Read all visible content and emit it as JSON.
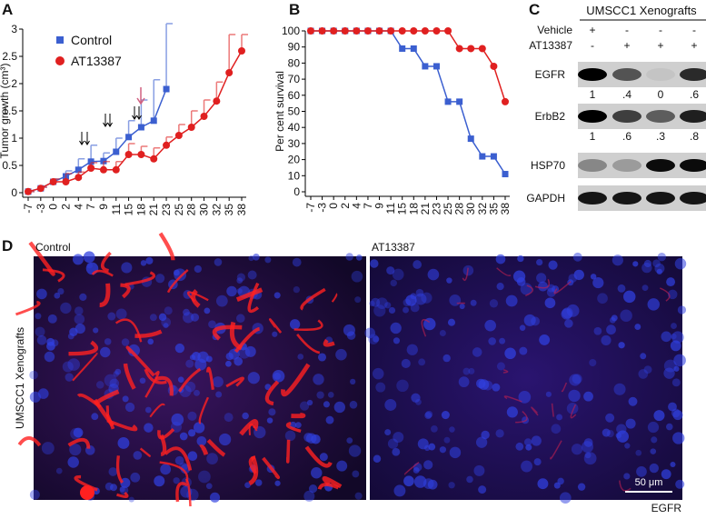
{
  "chart_data": [
    {
      "type": "line",
      "panel": "A",
      "ylabel": "Tumor growth (cm³)",
      "categories": [
        "-7",
        "-3",
        "0",
        "2",
        "4",
        "7",
        "9",
        "11",
        "15",
        "18",
        "21",
        "23",
        "25",
        "28",
        "30",
        "32",
        "35",
        "38"
      ],
      "ylim": [
        0,
        3
      ],
      "yticks": [
        0,
        0.5,
        1,
        1.5,
        2,
        2.5,
        3
      ],
      "legend": "top-left",
      "series": [
        {
          "name": "Control",
          "color": "#3b5fd0",
          "marker": "square",
          "values": [
            0.02,
            0.08,
            0.2,
            0.3,
            0.42,
            0.57,
            0.58,
            0.75,
            1.02,
            1.2,
            1.32,
            1.9,
            null,
            null,
            null,
            null,
            null,
            null
          ],
          "errors": [
            0,
            0.02,
            0.05,
            0.1,
            0.2,
            0.3,
            0.15,
            0.25,
            0.3,
            0.5,
            0.75,
            1.2,
            null,
            null,
            null,
            null,
            null,
            null
          ]
        },
        {
          "name": "AT13387",
          "color": "#e02020",
          "marker": "circle",
          "values": [
            0.02,
            0.08,
            0.2,
            0.2,
            0.28,
            0.45,
            0.42,
            0.42,
            0.7,
            0.7,
            0.62,
            0.87,
            1.05,
            1.2,
            1.4,
            1.68,
            2.2,
            2.6
          ],
          "errors": [
            0,
            0.02,
            0.05,
            0.15,
            0.1,
            0.1,
            0.15,
            0.15,
            0.2,
            0.15,
            0.2,
            0.15,
            0.2,
            0.3,
            0.3,
            0.35,
            0.7,
            0.3
          ]
        }
      ]
    },
    {
      "type": "line",
      "panel": "B",
      "ylabel": "Per cent survival",
      "categories": [
        "-7",
        "-3",
        "0",
        "2",
        "4",
        "7",
        "9",
        "11",
        "15",
        "18",
        "21",
        "23",
        "25",
        "28",
        "30",
        "32",
        "35",
        "38"
      ],
      "ylim": [
        0,
        100
      ],
      "yticks": [
        0,
        10,
        20,
        30,
        40,
        50,
        60,
        70,
        80,
        90,
        100
      ],
      "series": [
        {
          "color": "#3b5fd0",
          "marker": "square",
          "values": [
            100,
            100,
            100,
            100,
            100,
            100,
            100,
            100,
            89,
            89,
            78,
            78,
            56,
            56,
            33,
            22,
            22,
            11
          ]
        },
        {
          "color": "#e02020",
          "marker": "circle",
          "values": [
            100,
            100,
            100,
            100,
            100,
            100,
            100,
            100,
            100,
            100,
            100,
            100,
            100,
            89,
            89,
            89,
            78,
            56
          ]
        }
      ]
    }
  ],
  "panel_c": {
    "letter": "C",
    "title": "UMSCC1 Xenografts",
    "rows": [
      {
        "label": "Vehicle",
        "signs": [
          "+",
          "-",
          "-",
          "-"
        ]
      },
      {
        "label": "AT13387",
        "signs": [
          "-",
          "+",
          "+",
          "+"
        ]
      }
    ],
    "bands": [
      {
        "label": "EGFR",
        "quant": [
          "1",
          ".4",
          "0",
          ".6"
        ]
      },
      {
        "label": "ErbB2",
        "quant": [
          "1",
          ".6",
          ".3",
          ".8"
        ]
      },
      {
        "label": "HSP70"
      },
      {
        "label": "GAPDH"
      }
    ]
  },
  "panel_d": {
    "letter": "D",
    "left_label": "Control",
    "right_label": "AT13387",
    "side_label": "UMSCC1 Xenografts",
    "scale_bar": "50 μm",
    "stain": "EGFR"
  }
}
